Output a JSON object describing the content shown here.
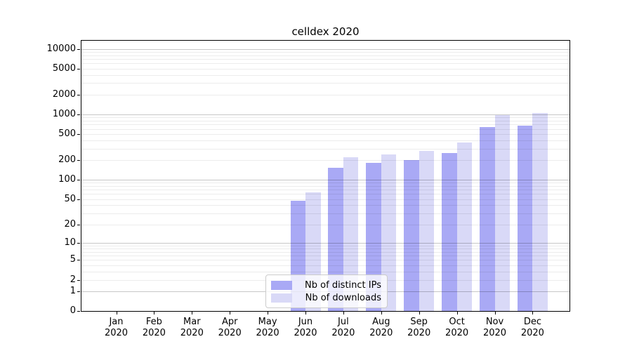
{
  "title": "celldex 2020",
  "chart_data": {
    "type": "bar",
    "title": "celldex 2020",
    "categories": [
      "Jan 2020",
      "Feb 2020",
      "Mar 2020",
      "Apr 2020",
      "May 2020",
      "Jun 2020",
      "Jul 2020",
      "Aug 2020",
      "Sep 2020",
      "Oct 2020",
      "Nov 2020",
      "Dec 2020"
    ],
    "series": [
      {
        "name": "Nb of distinct IPs",
        "color": "#a9a9f5",
        "values": [
          0,
          0,
          0,
          0,
          0,
          47,
          152,
          180,
          200,
          256,
          636,
          674
        ]
      },
      {
        "name": "Nb of downloads",
        "color": "#d9d9f7",
        "values": [
          0,
          0,
          0,
          0,
          0,
          64,
          223,
          246,
          273,
          372,
          985,
          1059
        ]
      }
    ],
    "xlabel": "",
    "ylabel": "",
    "y_scale": "log1p",
    "y_ticks": [
      10000,
      5000,
      2000,
      1000,
      500,
      200,
      100,
      50,
      20,
      10,
      5,
      2,
      1,
      0
    ],
    "ylim": [
      0,
      13800
    ],
    "grid": "horizontal-log-major-minor",
    "legend_position": "lower-center-left-inside"
  }
}
